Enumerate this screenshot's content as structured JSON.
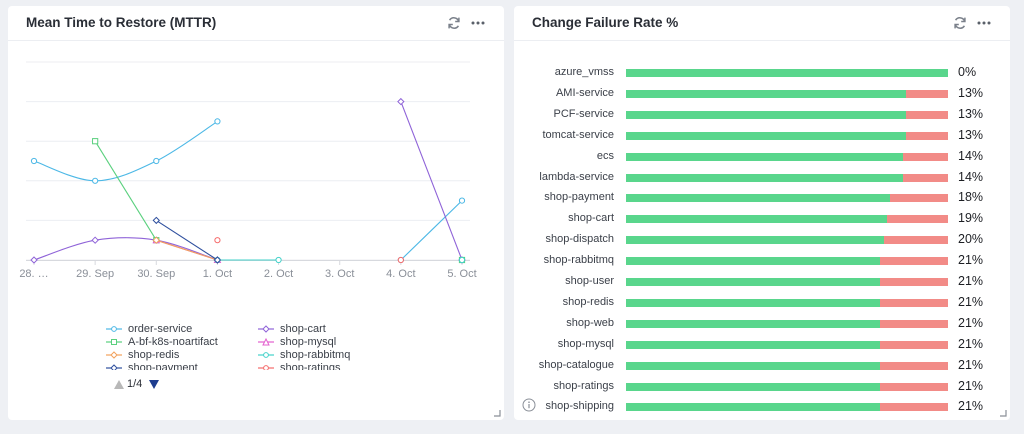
{
  "mttr": {
    "title": "Mean Time to Restore (MTTR)",
    "header_icons": [
      "refresh-icon",
      "more-options-icon"
    ],
    "chart_data": {
      "type": "line",
      "x": [
        "28. Sep",
        "29. Sep",
        "30. Sep",
        "1. Oct",
        "2. Oct",
        "3. Oct",
        "4. Oct",
        "5. Oct"
      ],
      "x_tick_labels": [
        "28. …",
        "29. Sep",
        "30. Sep",
        "1. Oct",
        "2. Oct",
        "3. Oct",
        "4. Oct",
        "5. Oct"
      ],
      "ylim": [
        0,
        5
      ],
      "grid": true,
      "legend_placement": "bottom",
      "series": [
        {
          "name": "order-service",
          "color": "#4cb8e6",
          "marker": "circle",
          "smooth": true,
          "values": [
            2.5,
            2.0,
            2.5,
            3.5,
            null,
            null,
            0,
            1.5
          ]
        },
        {
          "name": "shop-cart",
          "color": "#8f63d8",
          "marker": "diamond",
          "smooth": true,
          "values": [
            0,
            0.5,
            0.5,
            0,
            null,
            null,
            4.0,
            0
          ]
        },
        {
          "name": "A-bf-k8s-noartifact",
          "color": "#5ad07e",
          "marker": "square",
          "smooth": false,
          "values": [
            null,
            3.0,
            0.5,
            null,
            null,
            null,
            null,
            0
          ]
        },
        {
          "name": "shop-mysql",
          "color": "#e35fce",
          "marker": "triangle",
          "smooth": false,
          "values": [
            null,
            null,
            0.5,
            0,
            null,
            null,
            null,
            null
          ]
        },
        {
          "name": "shop-redis",
          "color": "#f2a15b",
          "marker": "diamond",
          "smooth": false,
          "values": [
            null,
            null,
            0.5,
            0,
            null,
            null,
            null,
            null
          ]
        },
        {
          "name": "shop-rabbitmq",
          "color": "#43d1c9",
          "marker": "circle",
          "smooth": false,
          "values": [
            null,
            null,
            null,
            0,
            0,
            null,
            null,
            0
          ]
        },
        {
          "name": "shop-payment",
          "color": "#2e4f9e",
          "marker": "diamond",
          "smooth": false,
          "values": [
            null,
            null,
            1.0,
            0,
            null,
            null,
            null,
            null
          ]
        },
        {
          "name": "shop-ratings",
          "color": "#f56a6a",
          "marker": "circle",
          "smooth": false,
          "values": [
            null,
            null,
            null,
            0.5,
            null,
            null,
            0,
            null
          ]
        }
      ]
    },
    "legend": {
      "items": [
        "order-service",
        "shop-cart",
        "A-bf-k8s-noartifact",
        "shop-mysql",
        "shop-redis",
        "shop-rabbitmq",
        "shop-payment",
        "shop-ratings"
      ],
      "pager_text": "1/4"
    }
  },
  "cfr": {
    "title": "Change Failure Rate %",
    "header_icons": [
      "refresh-icon",
      "more-options-icon"
    ],
    "chart_data": {
      "type": "bar",
      "orientation": "horizontal",
      "stacked": true,
      "categories": [
        "azure_vmss",
        "AMI-service",
        "PCF-service",
        "tomcat-service",
        "ecs",
        "lambda-service",
        "shop-payment",
        "shop-cart",
        "shop-dispatch",
        "shop-rabbitmq",
        "shop-user",
        "shop-redis",
        "shop-web",
        "shop-mysql",
        "shop-catalogue",
        "shop-ratings",
        "shop-shipping"
      ],
      "failure_percent": [
        0,
        13,
        13,
        13,
        14,
        14,
        18,
        19,
        20,
        21,
        21,
        21,
        21,
        21,
        21,
        21,
        21
      ],
      "labels": [
        "0%",
        "13%",
        "13%",
        "13%",
        "14%",
        "14%",
        "18%",
        "19%",
        "20%",
        "21%",
        "21%",
        "21%",
        "21%",
        "21%",
        "21%",
        "21%",
        "21%"
      ],
      "colors": {
        "success": "#59d68c",
        "failure": "#f28b87"
      },
      "xlim": [
        0,
        100
      ]
    }
  }
}
